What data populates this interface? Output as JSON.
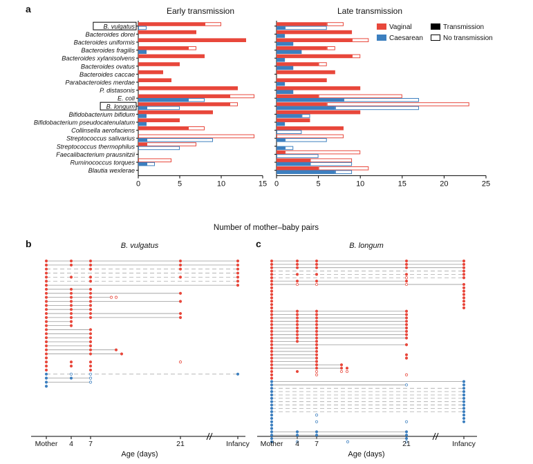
{
  "panel_a": {
    "label": "a",
    "xlabel": "Number of mother–baby pairs",
    "legend": {
      "vaginal": "Vaginal",
      "caesarean": "Caesarean",
      "transmission": "Transmission",
      "no_transmission": "No transmission"
    },
    "colors": {
      "vaginal": "#e8473b",
      "caesarean": "#3c7fbf",
      "no_transmission_fill": "#ffffff"
    }
  },
  "panel_b": {
    "label": "b",
    "title": "B. vulgatus",
    "xlabel": "Age (days)"
  },
  "panel_c": {
    "label": "c",
    "title": "B. longum",
    "xlabel": "Age (days)"
  },
  "timeline_ticks": [
    "Mother",
    "4",
    "7",
    "21",
    "Infancy"
  ],
  "chart_data": [
    {
      "type": "bar",
      "title": "Early transmission",
      "xlabel": "Number of mother–baby pairs",
      "xlim": [
        0,
        15
      ],
      "xticks": [
        0,
        5,
        10,
        15
      ],
      "categories": [
        "B. vulgatus",
        "Bacteroides dorei",
        "Bacteroides uniformis",
        "Bacteroides fragilis",
        "Bacteroides xylanisolvens",
        "Bacteroides ovatus",
        "Bacteroides caccae",
        "Parabacteroides merdae",
        "P. distasonis",
        "E. coli",
        "B. longum",
        "Bifidobacterium bifidum",
        "Bifidobacterium pseudocatenulatum",
        "Collinsella aerofaciens",
        "Streptococcus salivarius",
        "Streptococcus thermophilus",
        "Faecalibacterium prausnitzii",
        "Ruminococcus torques",
        "Blautia wexlerae"
      ],
      "boxed_categories": [
        "B. vulgatus",
        "B. longum"
      ],
      "series": [
        {
          "name": "Vaginal transmission",
          "values": [
            8,
            7,
            13,
            6,
            8,
            5,
            3,
            4,
            12,
            11,
            11,
            9,
            5,
            6,
            0,
            1,
            0,
            0,
            0
          ]
        },
        {
          "name": "Vaginal no transmission",
          "values": [
            2,
            0,
            0,
            1,
            0,
            0,
            0,
            0,
            0,
            3,
            1,
            0,
            0,
            2,
            14,
            6,
            0,
            4,
            0
          ]
        },
        {
          "name": "Caesarean transmission",
          "values": [
            0,
            0,
            0,
            1,
            0,
            0,
            0,
            0,
            0,
            6,
            1,
            1,
            1,
            0,
            1,
            0,
            0,
            1,
            0
          ]
        },
        {
          "name": "Caesarean no transmission",
          "values": [
            1,
            0,
            0,
            0,
            0,
            0,
            0,
            0,
            0,
            2,
            4,
            0,
            0,
            0,
            8,
            5,
            0,
            1,
            0
          ]
        }
      ]
    },
    {
      "type": "bar",
      "title": "Late transmission",
      "xlabel": "Number of mother–baby pairs",
      "xlim": [
        0,
        25
      ],
      "xticks": [
        0,
        5,
        10,
        15,
        20,
        25
      ],
      "categories": [
        "B. vulgatus",
        "Bacteroides dorei",
        "Bacteroides uniformis",
        "Bacteroides fragilis",
        "Bacteroides xylanisolvens",
        "Bacteroides ovatus",
        "Bacteroides caccae",
        "Parabacteroides merdae",
        "P. distasonis",
        "E. coli",
        "B. longum",
        "Bifidobacterium bifidum",
        "Bifidobacterium pseudocatenulatum",
        "Collinsella aerofaciens",
        "Streptococcus salivarius",
        "Streptococcus thermophilus",
        "Faecalibacterium prausnitzii",
        "Ruminococcus torques",
        "Blautia wexlerae"
      ],
      "series": [
        {
          "name": "Vaginal transmission",
          "values": [
            6,
            9,
            9,
            6,
            9,
            5,
            7,
            6,
            10,
            5,
            6,
            10,
            4,
            8,
            0,
            0,
            1,
            4,
            5
          ]
        },
        {
          "name": "Vaginal no transmission",
          "values": [
            2,
            0,
            2,
            1,
            1,
            1,
            0,
            0,
            0,
            10,
            17,
            0,
            0,
            0,
            8,
            0,
            9,
            5,
            6
          ]
        },
        {
          "name": "Caesarean transmission",
          "values": [
            1,
            1,
            2,
            3,
            1,
            2,
            0,
            1,
            2,
            8,
            7,
            3,
            1,
            0,
            1,
            1,
            0,
            4,
            7
          ]
        },
        {
          "name": "Caesarean no transmission",
          "values": [
            5,
            0,
            0,
            0,
            0,
            0,
            0,
            0,
            0,
            9,
            10,
            1,
            0,
            3,
            5,
            1,
            5,
            5,
            2
          ]
        }
      ]
    }
  ]
}
